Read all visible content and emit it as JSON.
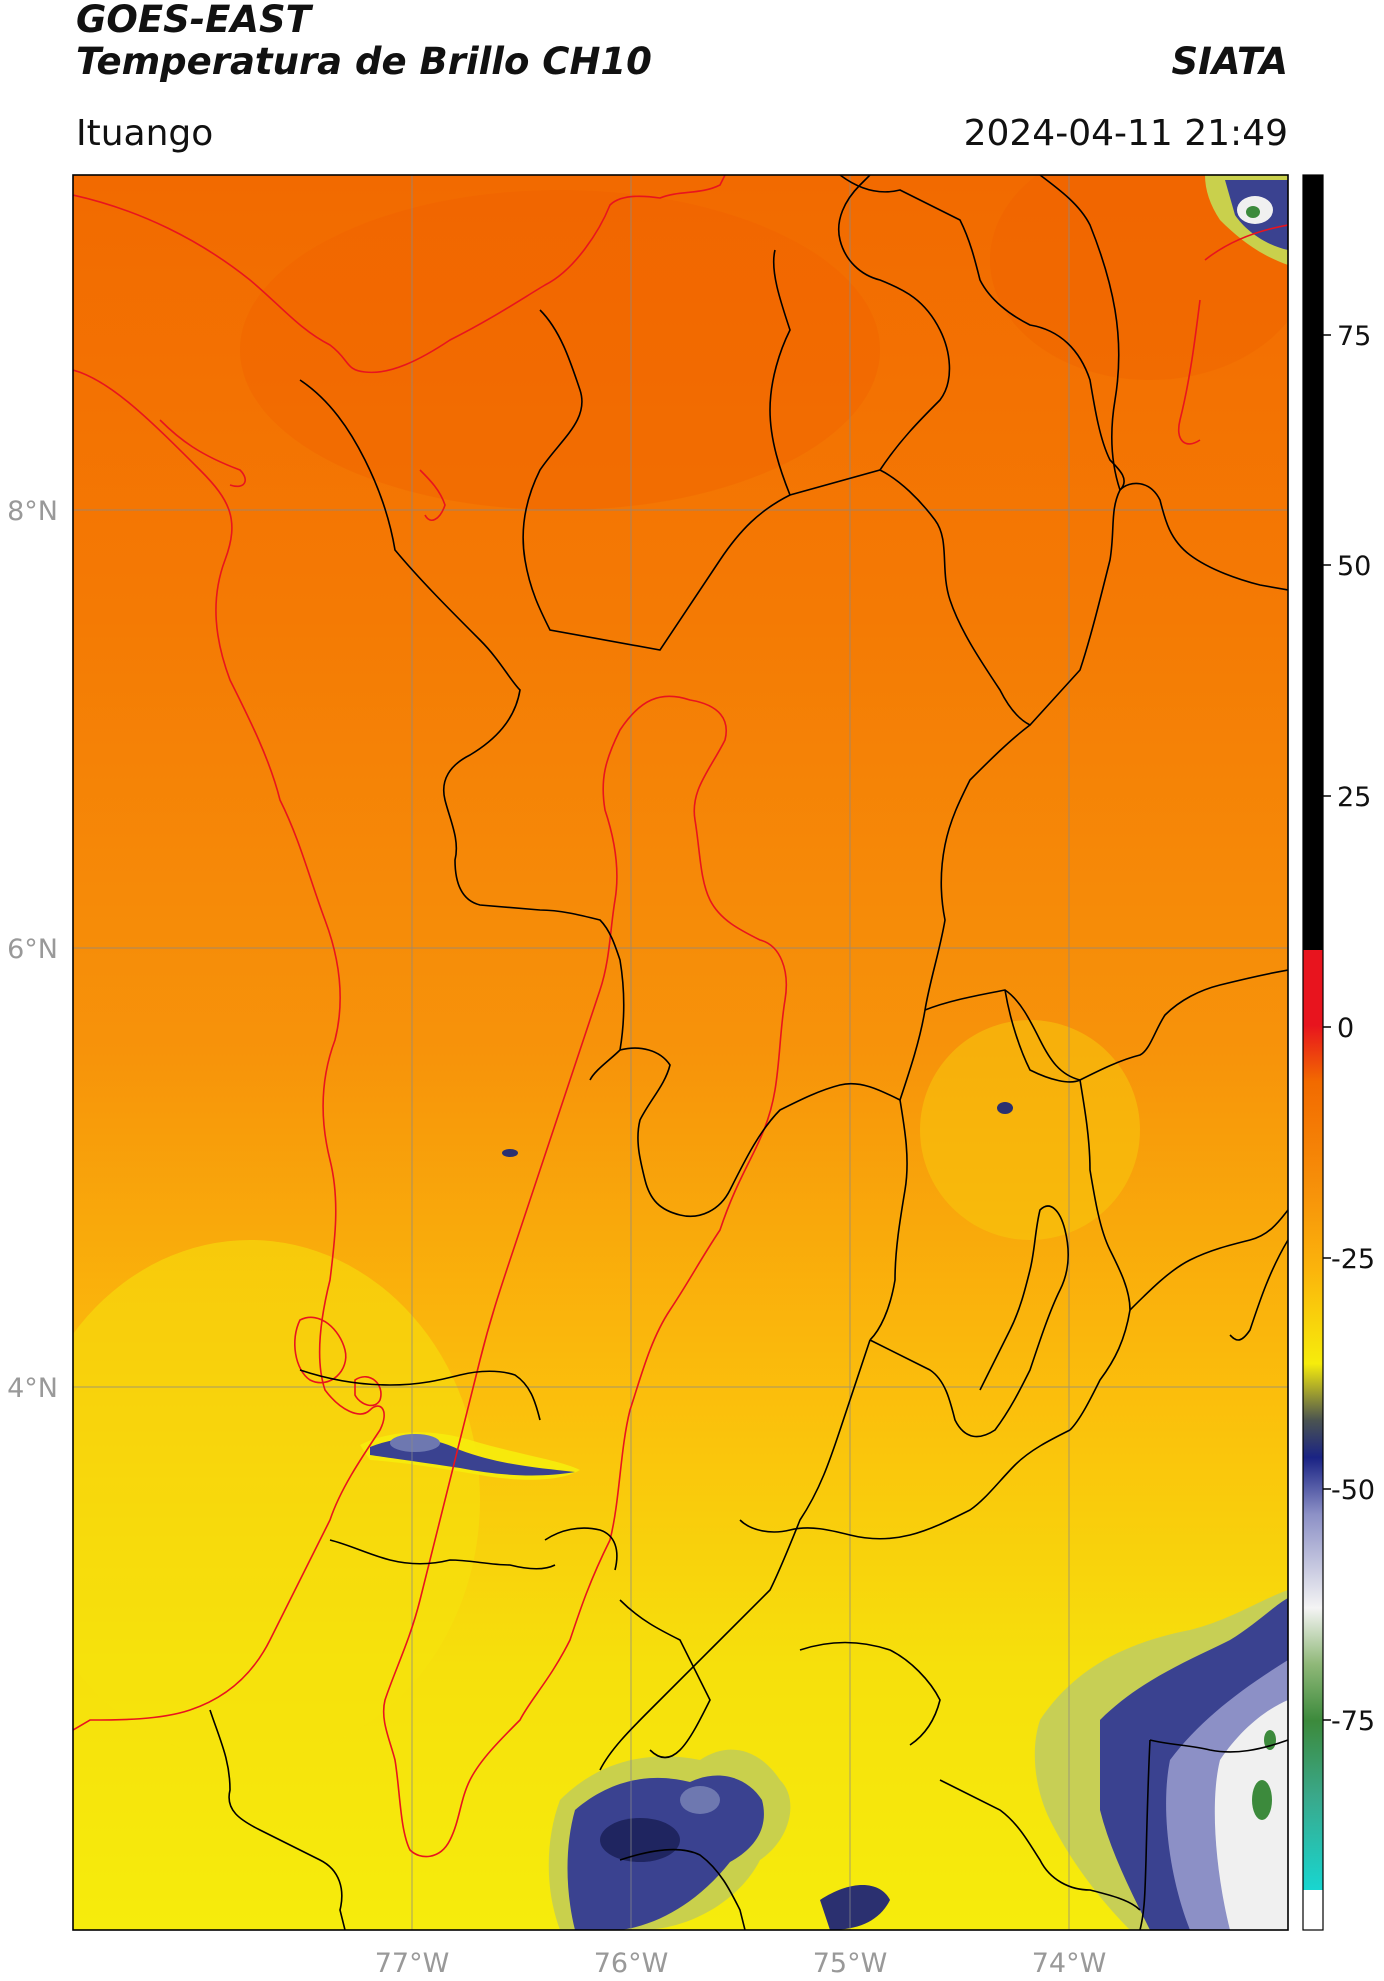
{
  "header": {
    "satellite": "GOES-EAST",
    "product": "Temperatura de Brillo CH10",
    "agency": "SIATA",
    "region": "Ituango",
    "datetime": "2024-04-11 21:49"
  },
  "map": {
    "lat_labels": [
      "8°N",
      "6°N",
      "4°N"
    ],
    "lon_labels": [
      "77°W",
      "76°W",
      "75°W",
      "74°W"
    ],
    "colors": {
      "deep_orange": "#f26a00",
      "orange": "#f7930a",
      "yellow_orange": "#fbbf0c",
      "yellow": "#f6ec0c",
      "cloud_dark": "#2b3070",
      "cloud_mid": "#6e78b0",
      "boundary_black": "#000000",
      "boundary_red": "#e8141e",
      "grid": "#888888"
    }
  },
  "colorbar": {
    "ticks": [
      "75",
      "50",
      "25",
      "0",
      "-25",
      "-50",
      "-75"
    ]
  }
}
